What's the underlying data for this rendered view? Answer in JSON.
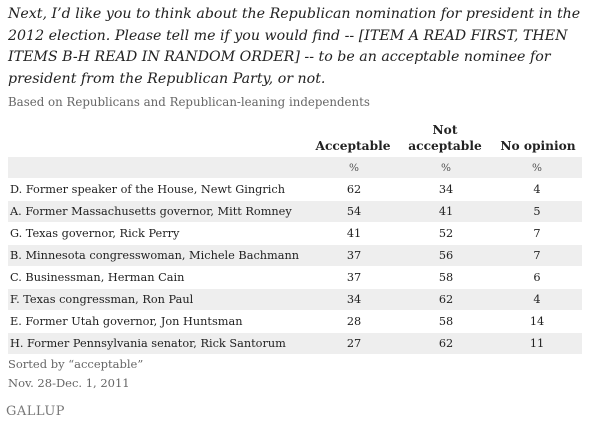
{
  "question": "Next, I’d like you to think about the Republican nomination for president in the 2012 election. Please tell me if you would find -- [ITEM A READ FIRST, THEN ITEMS B-H READ IN RANDOM ORDER] -- to be an acceptable nominee for president from the Republican Party, or not.",
  "subtitle": "Based on Republicans and Republican-leaning independents",
  "columns": {
    "acceptable": "Acceptable",
    "not_acceptable_line1": "Not",
    "not_acceptable_line2": "acceptable",
    "no_opinion": "No opinion"
  },
  "units": {
    "acceptable": "%",
    "not_acceptable": "%",
    "no_opinion": "%"
  },
  "rows": [
    {
      "label": "D. Former speaker of the House, Newt Gingrich",
      "acceptable": "62",
      "not_acceptable": "34",
      "no_opinion": "4"
    },
    {
      "label": "A. Former Massachusetts governor, Mitt Romney",
      "acceptable": "54",
      "not_acceptable": "41",
      "no_opinion": "5"
    },
    {
      "label": "G. Texas governor, Rick Perry",
      "acceptable": "41",
      "not_acceptable": "52",
      "no_opinion": "7"
    },
    {
      "label": "B. Minnesota congresswoman, Michele Bachmann",
      "acceptable": "37",
      "not_acceptable": "56",
      "no_opinion": "7"
    },
    {
      "label": "C. Businessman, Herman Cain",
      "acceptable": "37",
      "not_acceptable": "58",
      "no_opinion": "6"
    },
    {
      "label": "F. Texas congressman, Ron Paul",
      "acceptable": "34",
      "not_acceptable": "62",
      "no_opinion": "4"
    },
    {
      "label": "E. Former Utah governor, Jon Huntsman",
      "acceptable": "28",
      "not_acceptable": "58",
      "no_opinion": "14"
    },
    {
      "label": "H. Former Pennsylvania senator, Rick Santorum",
      "acceptable": "27",
      "not_acceptable": "62",
      "no_opinion": "11"
    }
  ],
  "notes": {
    "sorted": "Sorted by “acceptable”",
    "dates": "Nov. 28-Dec. 1, 2011"
  },
  "logo": "GALLUP",
  "colors": {
    "stripe": "#eeeeee",
    "text": "#222222",
    "muted": "#666666"
  }
}
